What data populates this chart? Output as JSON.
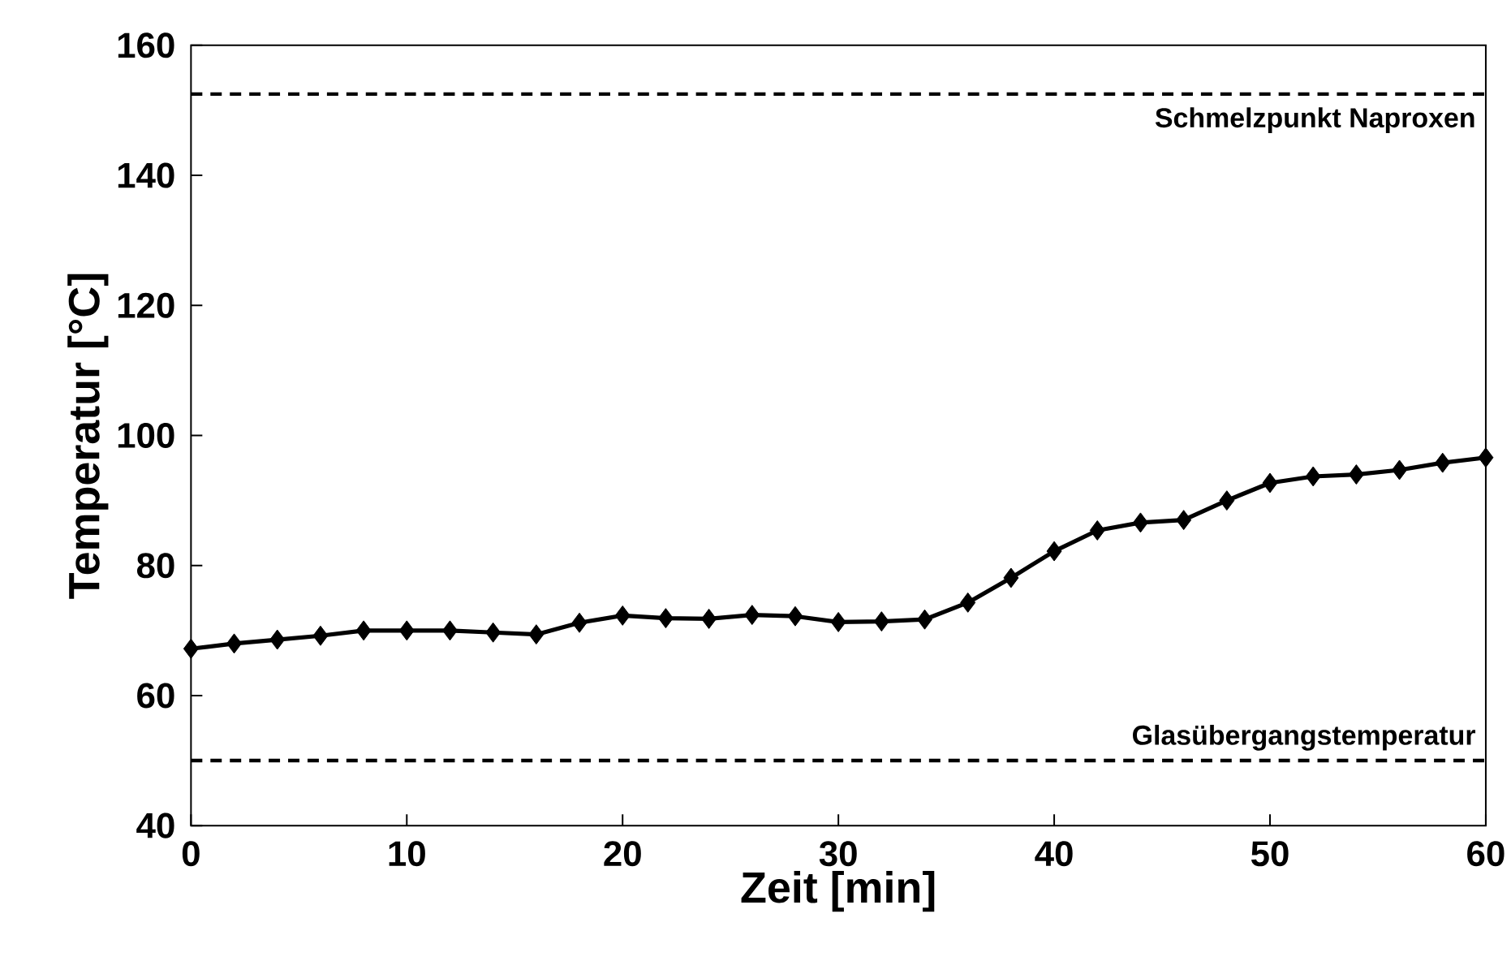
{
  "chart_data": {
    "type": "line",
    "xlabel": "Zeit [min]",
    "ylabel": "Temperatur [°C]",
    "x": [
      0,
      2,
      4,
      6,
      8,
      10,
      12,
      14,
      16,
      18,
      20,
      22,
      24,
      26,
      28,
      30,
      32,
      34,
      36,
      38,
      40,
      42,
      44,
      46,
      48,
      50,
      52,
      54,
      56,
      58,
      60
    ],
    "series": [
      {
        "color": "#000000",
        "values": [
          67.2,
          68.0,
          68.6,
          69.2,
          70.0,
          70.0,
          70.0,
          69.7,
          69.4,
          71.2,
          72.3,
          71.9,
          71.8,
          72.4,
          72.2,
          71.3,
          71.4,
          71.7,
          74.3,
          78.1,
          82.2,
          85.4,
          86.6,
          87.0,
          90.0,
          92.7,
          93.7,
          94.0,
          94.7,
          95.8,
          96.6
        ]
      }
    ],
    "xlim": [
      0,
      60
    ],
    "ylim": [
      40,
      160
    ],
    "xticks": [
      0,
      10,
      20,
      30,
      40,
      50,
      60
    ],
    "yticks": [
      40,
      60,
      80,
      100,
      120,
      140,
      160
    ],
    "marker": "diamond",
    "line_style": "solid",
    "ref_lines": [
      {
        "axis": "y",
        "value": 152.5,
        "label": "Schmelzpunkt Naproxen",
        "color": "#000000",
        "line_style": "dashed"
      },
      {
        "axis": "y",
        "value": 50,
        "label": "Glasübergangstemperatur",
        "color": "#000000",
        "line_style": "dashed"
      }
    ]
  }
}
